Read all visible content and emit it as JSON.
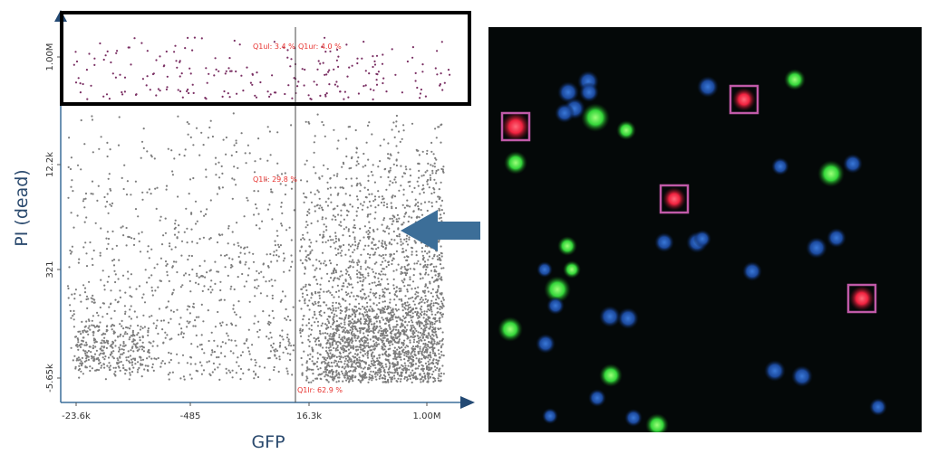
{
  "chart_data": {
    "type": "scatter",
    "title": "",
    "xlabel": "GFP",
    "ylabel": "PI (dead)",
    "x_ticks": [
      "-23.6k",
      "-485",
      "16.3k",
      "1.00M"
    ],
    "y_ticks": [
      "1.00M",
      "12.2k",
      "321",
      "-5.65k"
    ],
    "scale": "biexponential",
    "quadrants": [
      {
        "id": "Q1ul",
        "label": "Q1ul: 3.4 %",
        "percent": 3.4
      },
      {
        "id": "Q1ur",
        "label": "Q1ur: 4.0 %",
        "percent": 4.0
      },
      {
        "id": "Q1ll",
        "label": "Q1ll: 29.8 %",
        "percent": 29.8
      },
      {
        "id": "Q1lr",
        "label": "Q1lr: 62.9 %",
        "percent": 62.9
      }
    ],
    "x_gate": "16.3k",
    "highlighted_region": "top band (PI dead)",
    "point_color_dead": "#7a2f63",
    "point_color_other": "#7d7d7d"
  },
  "image": {
    "description_colors": {
      "background": "#040808",
      "dead_cell": "#ff2a45",
      "live_cell": "#3fe04a",
      "nucleus": "#1f4fa8",
      "box": "#c05aa8"
    }
  },
  "arrow_color": "#3c6e98"
}
